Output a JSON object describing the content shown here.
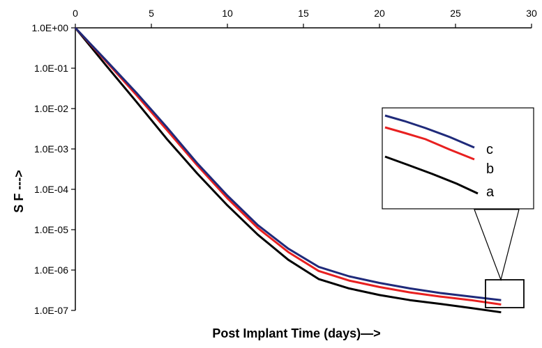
{
  "chart_data": {
    "type": "line",
    "xlabel": "Post Implant Time (days)—>",
    "ylabel": "S F --->",
    "xlim": [
      0,
      30
    ],
    "ylim": [
      1e-07,
      1
    ],
    "yscale": "log",
    "x_ticks": [
      "0",
      "5",
      "10",
      "15",
      "20",
      "25",
      "30"
    ],
    "y_ticks": [
      "1.0E+00",
      "1.0E-01",
      "1.0E-02",
      "1.0E-03",
      "1.0E-04",
      "1.0E-05",
      "1.0E-06",
      "1.0E-07"
    ],
    "x_axis_position": "top",
    "grid": false,
    "series": [
      {
        "name": "a",
        "color": "#000000",
        "x": [
          0,
          2,
          4,
          6,
          8,
          10,
          12,
          14,
          16,
          18,
          20,
          22,
          24,
          26,
          28
        ],
        "y": [
          1.0,
          0.12,
          0.015,
          0.0018,
          0.00025,
          4e-05,
          7.5e-06,
          1.8e-06,
          6e-07,
          3.5e-07,
          2.4e-07,
          1.8e-07,
          1.45e-07,
          1.15e-07,
          9e-08
        ]
      },
      {
        "name": "b",
        "color": "#e82020",
        "x": [
          0,
          2,
          4,
          6,
          8,
          10,
          12,
          14,
          16,
          18,
          20,
          22,
          24,
          26,
          28
        ],
        "y": [
          1.0,
          0.15,
          0.022,
          0.003,
          0.0004,
          6e-05,
          1.1e-05,
          2.8e-06,
          9.5e-07,
          5.5e-07,
          3.8e-07,
          2.8e-07,
          2.2e-07,
          1.8e-07,
          1.4e-07
        ]
      },
      {
        "name": "c",
        "color": "#1f2a7a",
        "x": [
          0,
          2,
          4,
          6,
          8,
          10,
          12,
          14,
          16,
          18,
          20,
          22,
          24,
          26,
          28
        ],
        "y": [
          1.0,
          0.16,
          0.025,
          0.0035,
          0.00045,
          7e-05,
          1.3e-05,
          3.4e-06,
          1.2e-06,
          7e-07,
          4.8e-07,
          3.5e-07,
          2.7e-07,
          2.2e-07,
          1.8e-07
        ]
      }
    ],
    "inset": {
      "shows": "magnified view of the curves near the last x values",
      "labels": [
        "c",
        "b",
        "a"
      ]
    }
  }
}
